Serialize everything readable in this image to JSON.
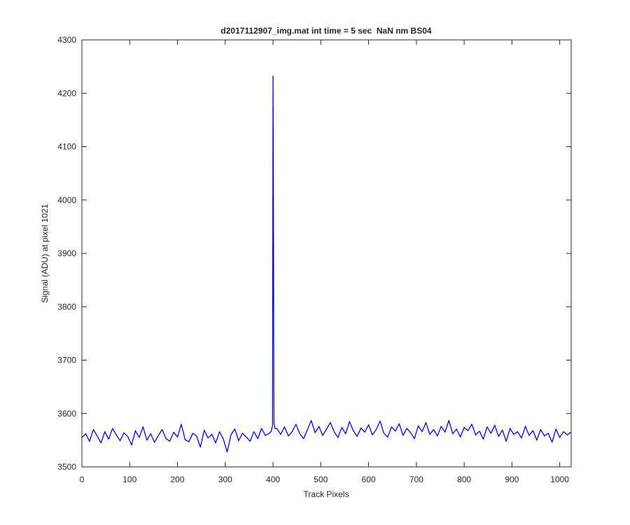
{
  "chart_data": {
    "type": "line",
    "title": "d2017112907_img.mat int time = 5 sec  NaN nm BS04",
    "x_label": "Track Pixels",
    "y_label": "Signal (ADU) at pixel 1021",
    "x": [
      0,
      8,
      16,
      24,
      32,
      40,
      48,
      56,
      64,
      72,
      80,
      88,
      96,
      104,
      112,
      120,
      128,
      136,
      144,
      152,
      160,
      168,
      176,
      184,
      192,
      200,
      208,
      216,
      224,
      232,
      240,
      248,
      256,
      264,
      272,
      280,
      288,
      296,
      304,
      312,
      320,
      328,
      336,
      344,
      352,
      360,
      368,
      376,
      384,
      392,
      396,
      399,
      400,
      402,
      404,
      408,
      416,
      424,
      432,
      440,
      448,
      456,
      464,
      472,
      480,
      488,
      496,
      504,
      512,
      520,
      528,
      536,
      544,
      552,
      560,
      568,
      576,
      584,
      592,
      600,
      608,
      616,
      624,
      632,
      640,
      648,
      656,
      664,
      672,
      680,
      688,
      696,
      704,
      712,
      720,
      728,
      736,
      744,
      752,
      760,
      768,
      776,
      784,
      792,
      800,
      808,
      816,
      824,
      832,
      840,
      848,
      856,
      864,
      872,
      880,
      888,
      896,
      904,
      912,
      920,
      928,
      936,
      944,
      952,
      960,
      968,
      976,
      984,
      992,
      1000,
      1008,
      1016,
      1023
    ],
    "values": [
      3555,
      3562,
      3548,
      3570,
      3558,
      3545,
      3566,
      3552,
      3572,
      3560,
      3549,
      3564,
      3557,
      3541,
      3568,
      3555,
      3575,
      3550,
      3562,
      3546,
      3559,
      3570,
      3553,
      3548,
      3565,
      3556,
      3580,
      3551,
      3547,
      3563,
      3558,
      3537,
      3569,
      3554,
      3561,
      3545,
      3566,
      3552,
      3528,
      3560,
      3571,
      3549,
      3563,
      3556,
      3548,
      3566,
      3553,
      3572,
      3559,
      3563,
      3566,
      3578,
      4232,
      3582,
      3572,
      3572,
      3561,
      3575,
      3558,
      3566,
      3580,
      3562,
      3553,
      3570,
      3587,
      3564,
      3576,
      3559,
      3571,
      3583,
      3566,
      3555,
      3574,
      3562,
      3585,
      3568,
      3557,
      3573,
      3565,
      3579,
      3560,
      3570,
      3586,
      3563,
      3556,
      3575,
      3567,
      3581,
      3559,
      3572,
      3564,
      3553,
      3577,
      3566,
      3583,
      3561,
      3570,
      3558,
      3576,
      3565,
      3587,
      3562,
      3571,
      3556,
      3574,
      3568,
      3580,
      3560,
      3567,
      3552,
      3575,
      3563,
      3578,
      3557,
      3569,
      3548,
      3572,
      3561,
      3566,
      3554,
      3576,
      3559,
      3568,
      3550,
      3570,
      3558,
      3563,
      3546,
      3571,
      3555,
      3566,
      3560,
      3565
    ],
    "color": "#0000ff",
    "xlim": [
      0,
      1024
    ],
    "xticks": [
      0,
      100,
      200,
      300,
      400,
      500,
      600,
      700,
      800,
      900,
      1000
    ],
    "ylim": [
      3500,
      4300
    ],
    "yticks": [
      3500,
      3600,
      3700,
      3800,
      3900,
      4000,
      4100,
      4200,
      4300
    ],
    "grid": false
  }
}
